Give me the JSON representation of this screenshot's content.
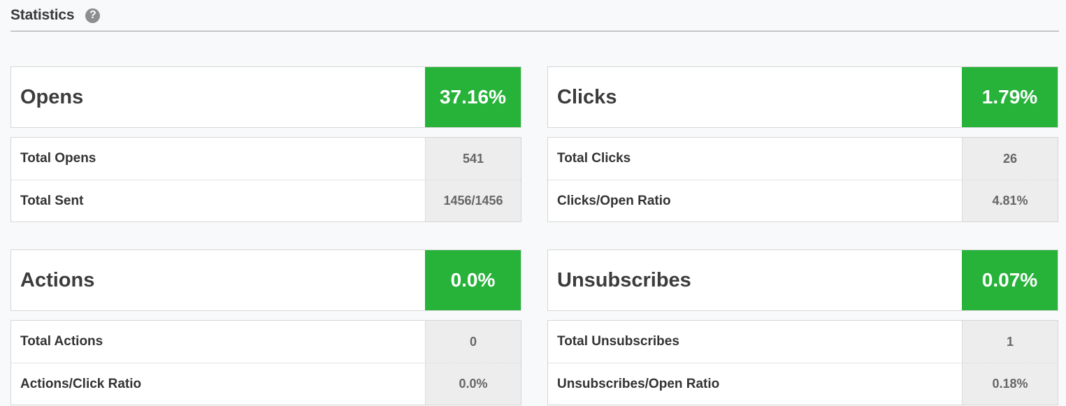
{
  "header": {
    "title": "Statistics",
    "help_glyph": "?"
  },
  "cards": {
    "opens": {
      "title": "Opens",
      "percent": "37.16%",
      "rows": [
        {
          "label": "Total Opens",
          "value": "541"
        },
        {
          "label": "Total Sent",
          "value": "1456/1456"
        }
      ]
    },
    "clicks": {
      "title": "Clicks",
      "percent": "1.79%",
      "rows": [
        {
          "label": "Total Clicks",
          "value": "26"
        },
        {
          "label": "Clicks/Open Ratio",
          "value": "4.81%"
        }
      ]
    },
    "actions": {
      "title": "Actions",
      "percent": "0.0%",
      "rows": [
        {
          "label": "Total Actions",
          "value": "0"
        },
        {
          "label": "Actions/Click Ratio",
          "value": "0.0%"
        }
      ]
    },
    "unsubscribes": {
      "title": "Unsubscribes",
      "percent": "0.07%",
      "rows": [
        {
          "label": "Total Unsubscribes",
          "value": "1"
        },
        {
          "label": "Unsubscribes/Open Ratio",
          "value": "0.18%"
        }
      ]
    }
  },
  "colors": {
    "accent_green": "#27b23a",
    "value_cell_bg": "#ededed",
    "page_bg": "#f8f9fa"
  },
  "icons": {
    "help": "question-circle-icon"
  }
}
